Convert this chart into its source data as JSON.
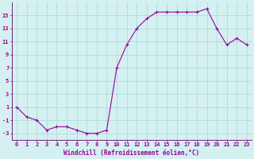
{
  "x": [
    0,
    1,
    2,
    3,
    4,
    5,
    6,
    7,
    8,
    9,
    10,
    11,
    12,
    13,
    14,
    15,
    16,
    17,
    18,
    19,
    20,
    21,
    22,
    23
  ],
  "y": [
    1,
    -0.5,
    -1,
    -2.5,
    -2,
    -2,
    -2.5,
    -3,
    -3,
    -2.5,
    7,
    10.5,
    13,
    14.5,
    15.5,
    15.5,
    15.5,
    15.5,
    15.5,
    16,
    13,
    10.5,
    11.5,
    10.5
  ],
  "line_color": "#990099",
  "marker_color": "#990099",
  "bg_color": "#d4f0f0",
  "grid_color": "#aadddd",
  "axis_color": "#660066",
  "tick_color": "#990099",
  "xlabel": "Windchill (Refroidissement éolien,°C)",
  "yticks": [
    -3,
    -1,
    1,
    3,
    5,
    7,
    9,
    11,
    13,
    15
  ],
  "ylim": [
    -4,
    17
  ],
  "xlim": [
    -0.5,
    23.5
  ],
  "label_fontsize": 5.5,
  "tick_fontsize": 5.0
}
